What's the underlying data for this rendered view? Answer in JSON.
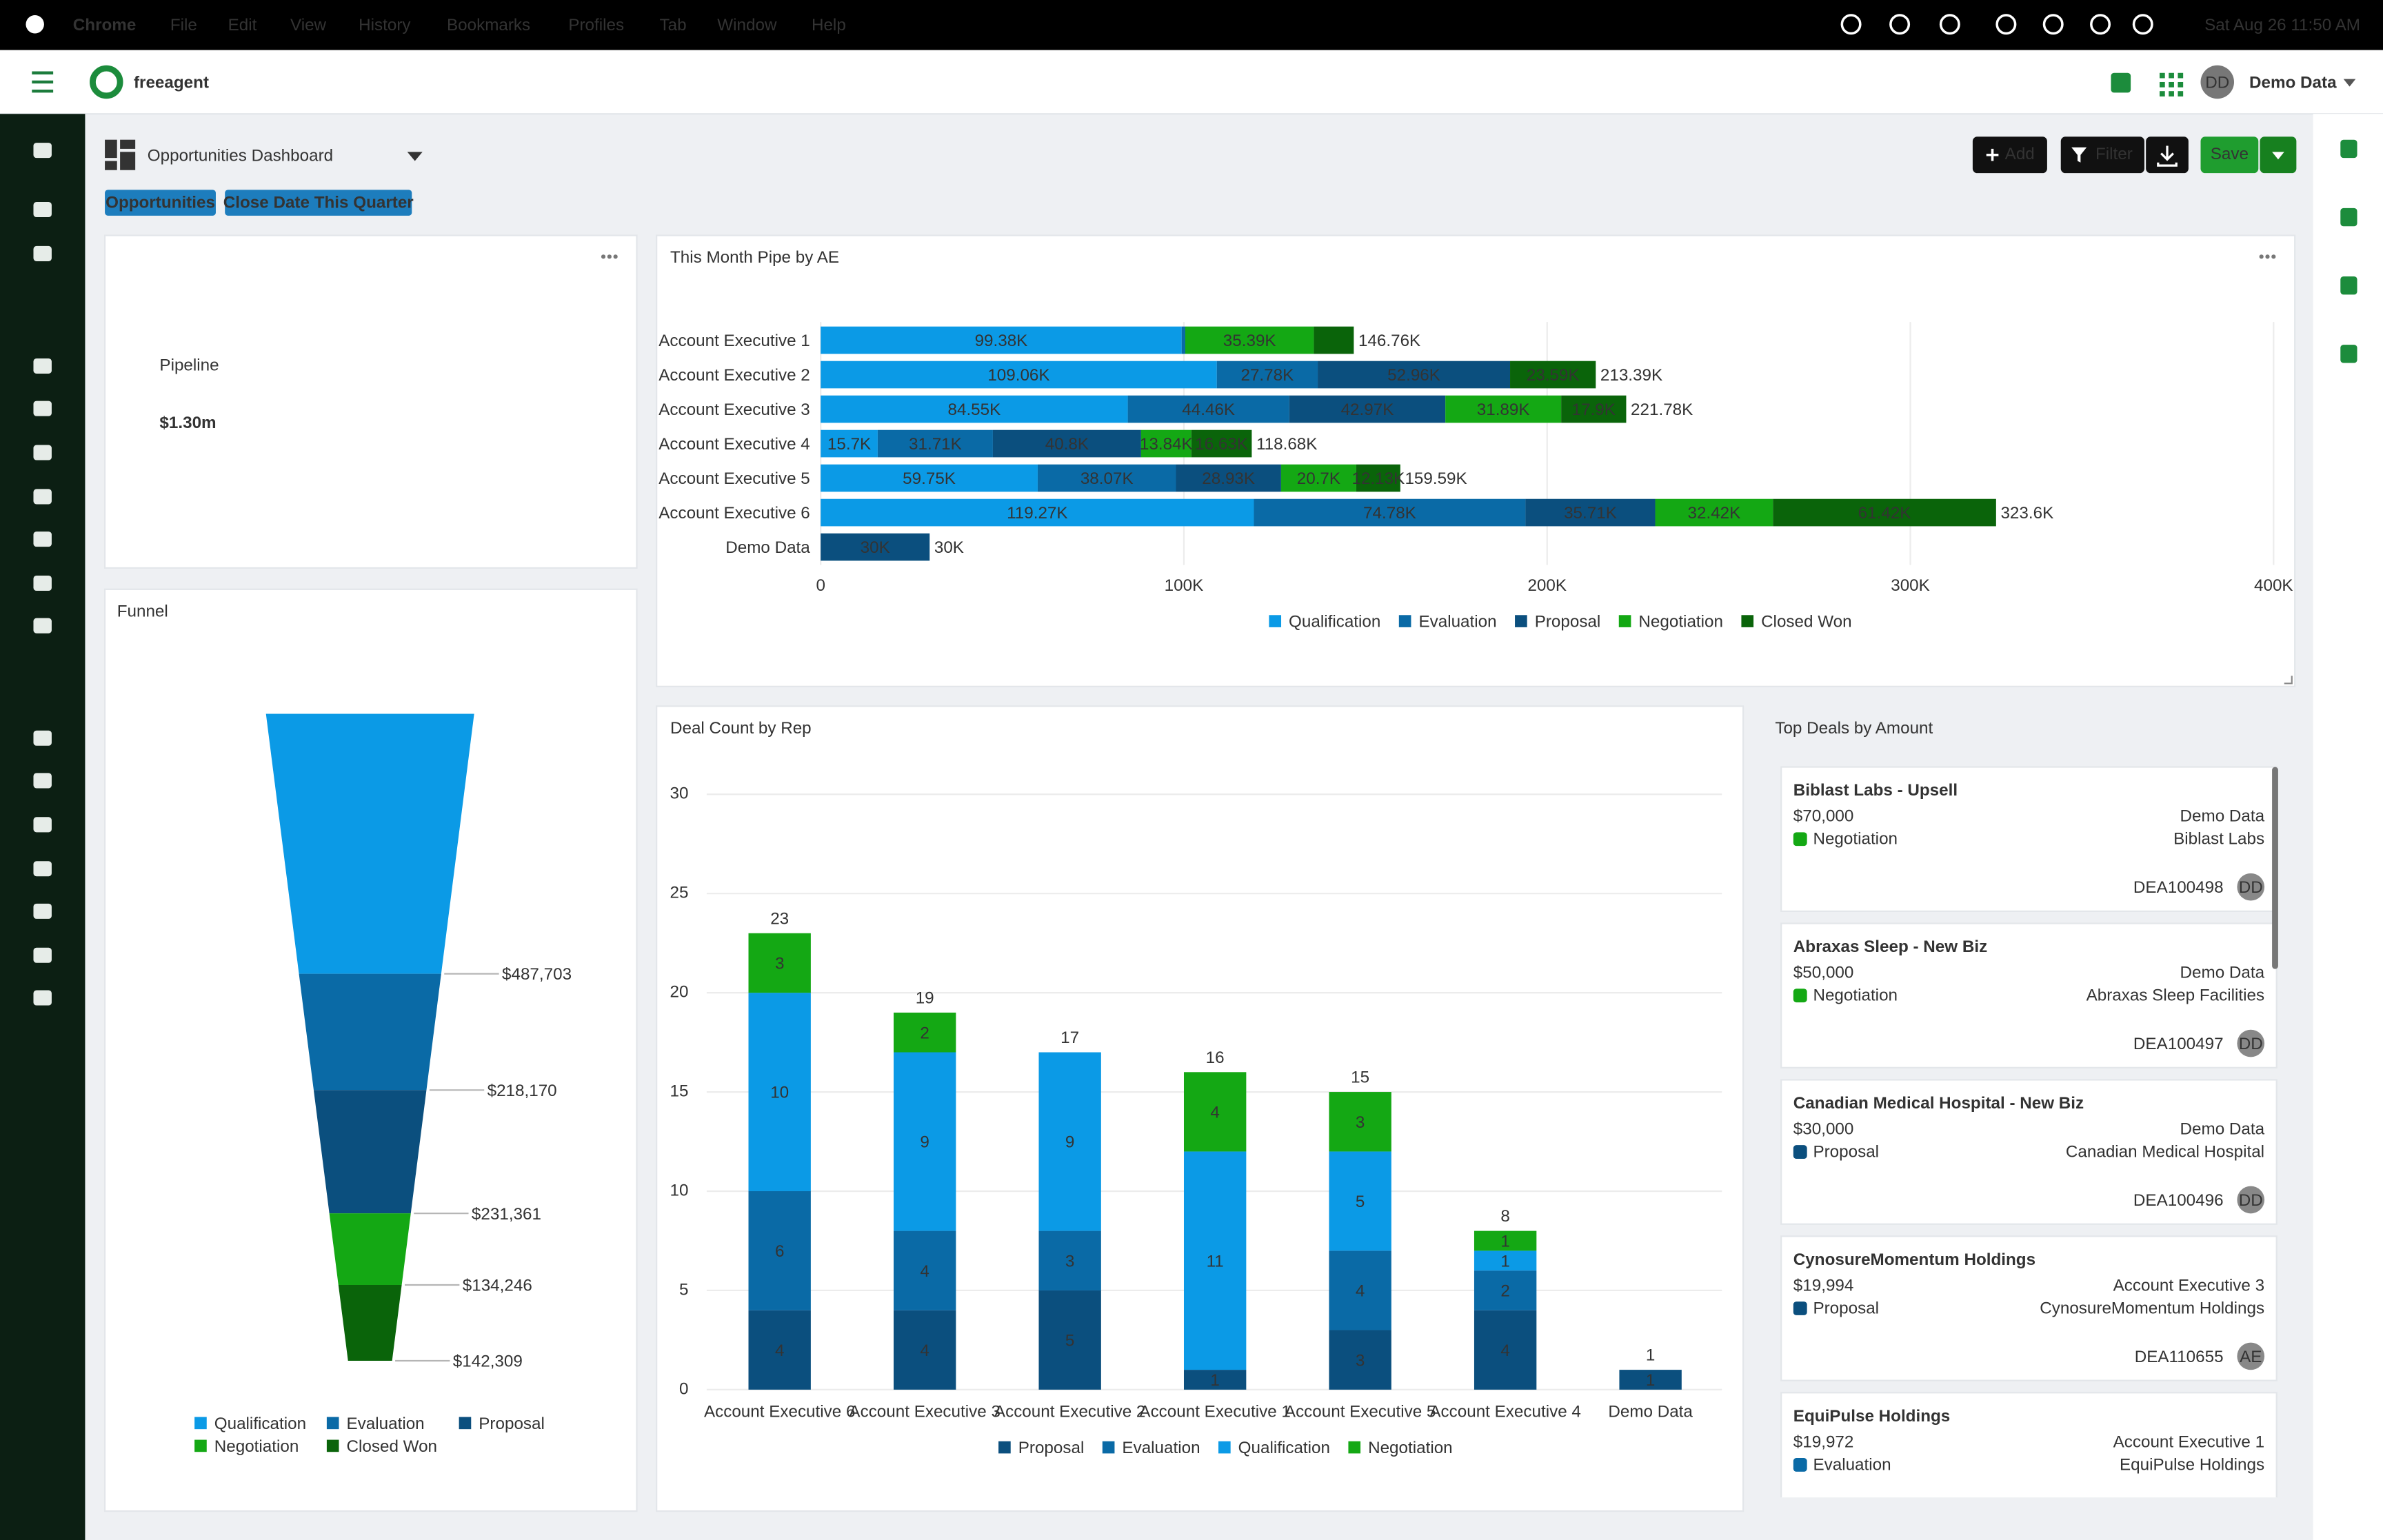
{
  "menu_bar": {
    "app": "Chrome",
    "items": [
      "File",
      "Edit",
      "View",
      "History",
      "Bookmarks",
      "Profiles",
      "Tab",
      "Window",
      "Help"
    ],
    "clock": "Sat Aug 26  11:50 AM"
  },
  "header": {
    "logo": "freeagent",
    "avatar": "DD",
    "user": "Demo Data"
  },
  "toolbar": {
    "title": "Opportunities Dashboard",
    "buttons": [
      "Add",
      "Filter",
      "Save"
    ],
    "filters": [
      "Opportunities",
      "Close Date This Quarter"
    ]
  },
  "pipeline": {
    "label": "Pipeline",
    "value": "$1.30m"
  },
  "chart_data": [
    {
      "type": "hbar",
      "stacked": true,
      "title": "This Month Pipe by AE",
      "categories": [
        "Account Executive 1",
        "Account Executive 2",
        "Account Executive 3",
        "Account Executive 4",
        "Account Executive 5",
        "Account Executive 6",
        "Demo Data"
      ],
      "series": [
        {
          "name": "Qualification",
          "color": "#0b9ae6",
          "values": [
            99380,
            109060,
            84550,
            15700,
            59750,
            119270,
            null
          ],
          "value_labels": [
            "99.38K",
            "109.06K",
            "84.55K",
            "15.7K",
            "59.75K",
            "119.27K",
            null
          ]
        },
        {
          "name": "Evaluation",
          "color": "#0a6aa6",
          "values": [
            1000,
            27780,
            44460,
            31710,
            38070,
            74780,
            null
          ],
          "value_labels": [
            null,
            "27.78K",
            "44.46K",
            "31.71K",
            "38.07K",
            "74.78K",
            null
          ]
        },
        {
          "name": "Proposal",
          "color": "#0b4f7e",
          "values": [
            null,
            52960,
            42970,
            40800,
            28930,
            35710,
            30000
          ],
          "value_labels": [
            null,
            "52.96K",
            "42.97K",
            "40.8K",
            "28.93K",
            "35.71K",
            "30K"
          ]
        },
        {
          "name": "Negotiation",
          "color": "#14a814",
          "values": [
            35390,
            null,
            31890,
            13840,
            20700,
            32420,
            null
          ],
          "value_labels": [
            "35.39K",
            null,
            "31.89K",
            "13.84K",
            "20.7K",
            "32.42K",
            null
          ]
        },
        {
          "name": "Closed Won",
          "color": "#0a640a",
          "values": [
            11000,
            23590,
            17900,
            16630,
            12130,
            61420,
            null
          ],
          "value_labels": [
            null,
            "23.59K",
            "17.9K",
            "16.63K",
            "12.13K",
            "61.42K",
            null
          ]
        }
      ],
      "total_labels": [
        "146.76K",
        "213.39K",
        "221.78K",
        "118.68K",
        "159.59K",
        "323.6K",
        "30K"
      ],
      "xlim": [
        0,
        400000
      ],
      "xticks": [
        0,
        {
          "value": 100000,
          "label": "100K"
        },
        {
          "value": 200000,
          "label": "200K"
        },
        {
          "value": 300000,
          "label": "300K"
        },
        {
          "value": 400000,
          "label": "400K"
        }
      ],
      "grid": true
    },
    {
      "type": "funnel",
      "title": "Funnel",
      "categories": [
        "Qualification",
        "Evaluation",
        "Proposal",
        "Negotiation",
        "Closed Won"
      ],
      "values": [
        487703,
        218170,
        231361,
        134246,
        142309
      ],
      "value_labels": [
        "$487,703",
        "$218,170",
        "$231,361",
        "$134,246",
        "$142,309"
      ],
      "colors": [
        "#0b9ae6",
        "#0a6aa6",
        "#0b4f7e",
        "#14a814",
        "#0a640a"
      ]
    },
    {
      "type": "bar",
      "stacked": true,
      "title": "Deal Count by Rep",
      "categories": [
        "Account Executive 6",
        "Account Executive 3",
        "Account Executive 2",
        "Account Executive 1",
        "Account Executive 5",
        "Account Executive 4",
        "Demo Data"
      ],
      "series": [
        {
          "name": "Proposal",
          "color": "#0b4f7e",
          "values": [
            4,
            4,
            5,
            1,
            3,
            4,
            1
          ]
        },
        {
          "name": "Evaluation",
          "color": "#0a6aa6",
          "values": [
            6,
            4,
            3,
            null,
            4,
            2,
            null
          ]
        },
        {
          "name": "Qualification",
          "color": "#0b9ae6",
          "values": [
            10,
            9,
            9,
            11,
            5,
            1,
            null
          ]
        },
        {
          "name": "Negotiation",
          "color": "#14a814",
          "values": [
            3,
            2,
            null,
            4,
            3,
            1,
            null
          ]
        }
      ],
      "totals": [
        23,
        19,
        17,
        16,
        15,
        8,
        1
      ],
      "ylim": [
        0,
        30
      ],
      "yticks": [
        0,
        5,
        10,
        15,
        20,
        25,
        30
      ],
      "grid": true
    }
  ],
  "top_deals": {
    "title": "Top Deals by Amount",
    "deals": [
      {
        "name": "Biblast Labs - Upsell",
        "amount": "$70,000",
        "stage": "Negotiation",
        "owner": "Demo Data",
        "account": "Biblast Labs",
        "id": "DEA100498",
        "avatar": "DD"
      },
      {
        "name": "Abraxas Sleep - New Biz",
        "amount": "$50,000",
        "stage": "Negotiation",
        "owner": "Demo Data",
        "account": "Abraxas Sleep Facilities",
        "id": "DEA100497",
        "avatar": "DD"
      },
      {
        "name": "Canadian Medical Hospital - New Biz",
        "amount": "$30,000",
        "stage": "Proposal",
        "owner": "Demo Data",
        "account": "Canadian Medical Hospital",
        "id": "DEA100496",
        "avatar": "DD"
      },
      {
        "name": "CynosureMomentum Holdings",
        "amount": "$19,994",
        "stage": "Proposal",
        "owner": "Account Executive 3",
        "account": "CynosureMomentum Holdings",
        "id": "DEA110655",
        "avatar": "AE"
      },
      {
        "name": "EquiPulse Holdings",
        "amount": "$19,972",
        "stage": "Evaluation",
        "owner": "Account Executive 1",
        "account": "EquiPulse Holdings"
      }
    ]
  }
}
